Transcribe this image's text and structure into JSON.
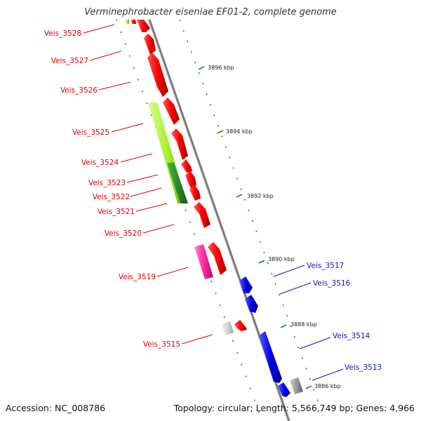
{
  "title": "Verminephrobacter eiseniae EF01-2, complete genome",
  "footer": {
    "accession": "Accession: NC_008786",
    "summary": "Topology: circular; Length: 5,566,749 bp; Genes: 4,966"
  },
  "scale_labels": [
    "3896 kbp",
    "3894 kbp",
    "3892 kbp",
    "3890 kbp",
    "3888 kbp",
    "3886 kbp"
  ],
  "genes_left": [
    {
      "label": "Veis_3528",
      "color": "#e00000"
    },
    {
      "label": "Veis_3527",
      "color": "#e00000"
    },
    {
      "label": "Veis_3526",
      "color": "#e00000"
    },
    {
      "label": "Veis_3525",
      "color": "#e00000"
    },
    {
      "label": "Veis_3524",
      "color": "#e00000"
    },
    {
      "label": "Veis_3523",
      "color": "#e00000"
    },
    {
      "label": "Veis_3522",
      "color": "#e00000"
    },
    {
      "label": "Veis_3521",
      "color": "#e00000"
    },
    {
      "label": "Veis_3520",
      "color": "#e00000"
    },
    {
      "label": "Veis_3519",
      "color": "#e00000"
    },
    {
      "label": "Veis_3515",
      "color": "#e00000"
    }
  ],
  "genes_right": [
    {
      "label": "Veis_3517",
      "color": "#1010c0"
    },
    {
      "label": "Veis_3516",
      "color": "#1010c0"
    },
    {
      "label": "Veis_3514",
      "color": "#1010c0"
    },
    {
      "label": "Veis_3513",
      "color": "#1010c0"
    }
  ],
  "colors": {
    "forward_strand": "#ff0000",
    "reverse_strand": "#1010e0",
    "lime_feature": "#aef03a",
    "dark_green_feature": "#2e9a2e",
    "pink_feature": "#ff2aa0",
    "gray_feature": "#888888",
    "backbone": "#999999",
    "tick": "#1a8a1a"
  }
}
